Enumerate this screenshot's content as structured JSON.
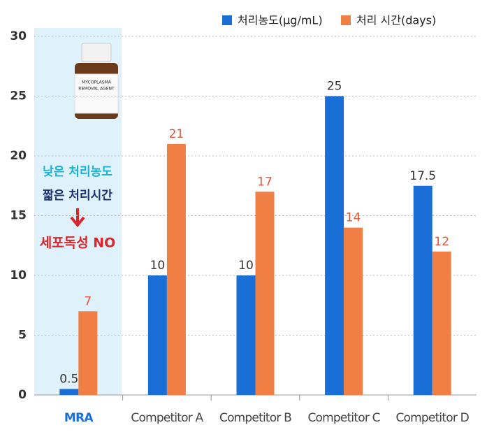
{
  "chart_data": {
    "type": "bar",
    "categories": [
      "MRA",
      "Competitor A",
      "Competitor B",
      "Competitor C",
      "Competitor D"
    ],
    "series": [
      {
        "name": "처리농도(μg/mL)",
        "color": "#1a6fd6",
        "values": [
          0.5,
          10,
          10,
          25,
          17.5
        ]
      },
      {
        "name": "처리 시간(days)",
        "color": "#f07f46",
        "values": [
          7,
          21,
          17,
          14,
          12
        ]
      }
    ],
    "ylim": [
      0,
      30
    ],
    "yticks": [
      0,
      5,
      10,
      15,
      20,
      25,
      30
    ],
    "grid": true,
    "legend": "upper right",
    "highlight_category": 0,
    "annotations": [
      "낮은 처리농도",
      "짧은 처리시간",
      "세포독성 NO"
    ],
    "bottle_label": [
      "MYCOPLASMA",
      "REMOVAL AGENT"
    ]
  }
}
